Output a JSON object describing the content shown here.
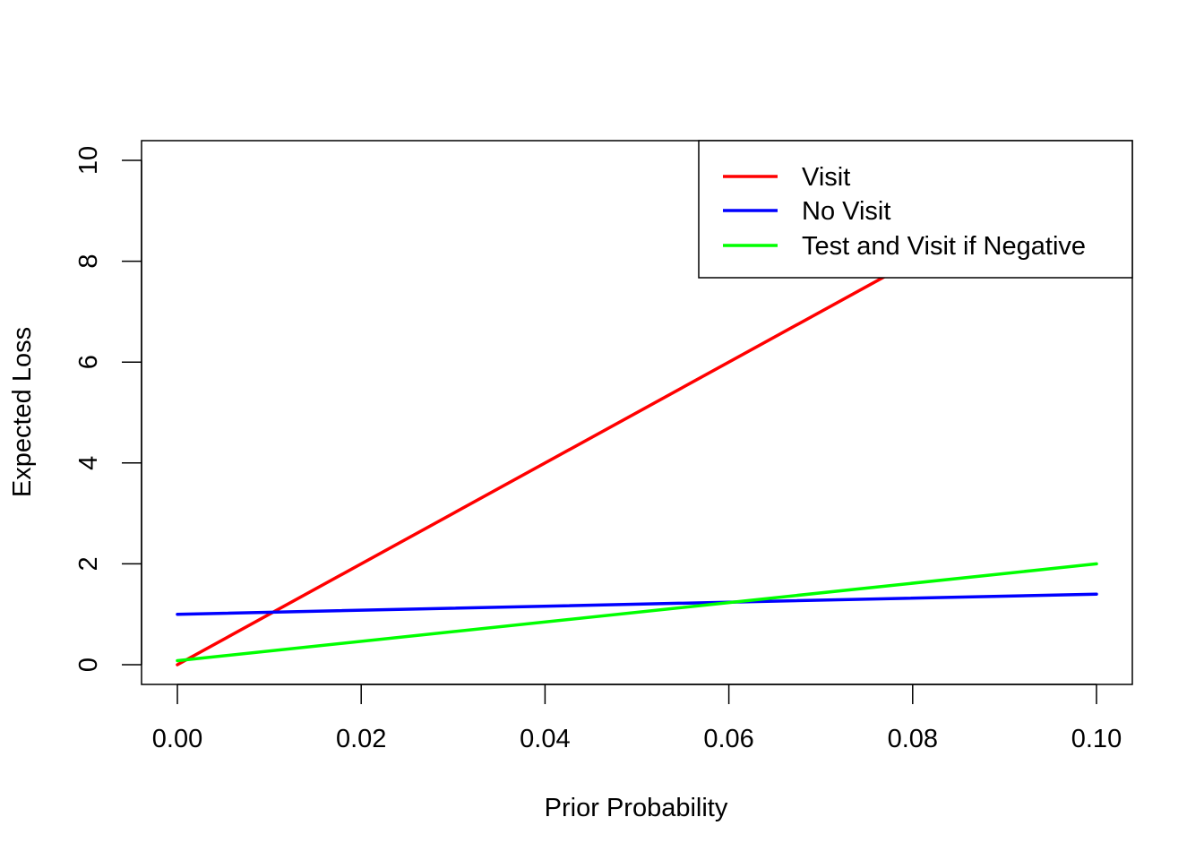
{
  "chart_data": {
    "type": "line",
    "title": "",
    "xlabel": "Prior Probability",
    "ylabel": "Expected Loss",
    "xlim": [
      -0.0039,
      0.1039
    ],
    "ylim": [
      -0.39,
      10.39
    ],
    "xticks": [
      0.0,
      0.02,
      0.04,
      0.06,
      0.08,
      0.1
    ],
    "xtick_labels": [
      "0.00",
      "0.02",
      "0.04",
      "0.06",
      "0.08",
      "0.10"
    ],
    "yticks": [
      0,
      2,
      4,
      6,
      8,
      10
    ],
    "ytick_labels": [
      "0",
      "2",
      "4",
      "6",
      "8",
      "10"
    ],
    "grid": false,
    "legend_position": "top-right",
    "series": [
      {
        "name": "Visit",
        "color": "#ff0000",
        "x": [
          0.0,
          0.1
        ],
        "y": [
          0.0,
          10.0
        ]
      },
      {
        "name": "No Visit",
        "color": "#0000ff",
        "x": [
          0.0,
          0.1
        ],
        "y": [
          1.0,
          1.4
        ]
      },
      {
        "name": "Test and Visit if Negative",
        "color": "#00ff00",
        "x": [
          0.0,
          0.1
        ],
        "y": [
          0.08,
          2.0
        ]
      }
    ]
  }
}
